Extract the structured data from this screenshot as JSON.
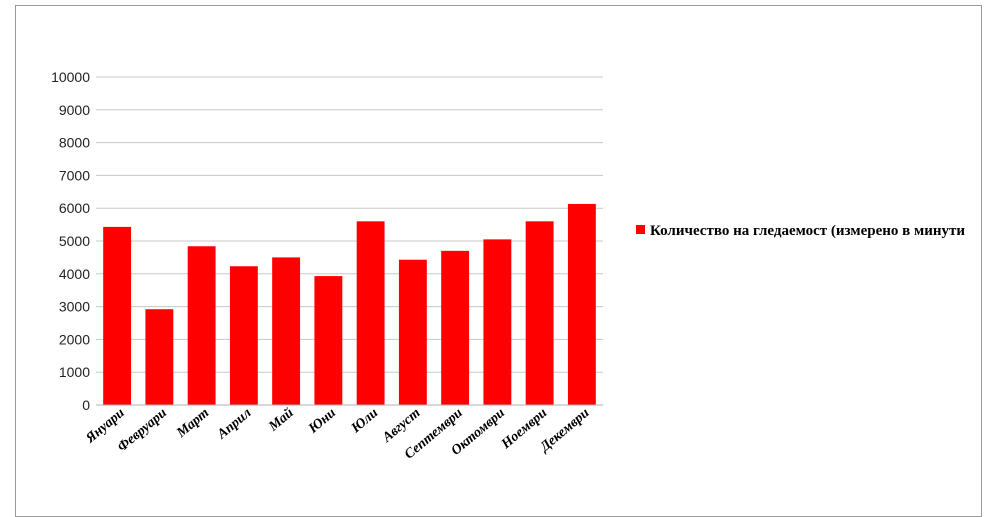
{
  "chart_data": {
    "type": "bar",
    "categories": [
      "Януари",
      "Февруари",
      "Март",
      "Април",
      "Май",
      "Юни",
      "Юли",
      "Август",
      "Септември",
      "Октомври",
      "Ноември",
      "Декември"
    ],
    "series": [
      {
        "name": "Количество на гледаемост (измерено в минути",
        "values": [
          5430,
          2920,
          4840,
          4230,
          4500,
          3930,
          5600,
          4430,
          4700,
          5050,
          5600,
          6130
        ]
      }
    ],
    "ylim": [
      0,
      10000
    ],
    "yticks": [
      0,
      1000,
      2000,
      3000,
      4000,
      5000,
      6000,
      7000,
      8000,
      9000,
      10000
    ],
    "grid": true,
    "legend_position": "right",
    "bar_color": "#ff0000"
  }
}
